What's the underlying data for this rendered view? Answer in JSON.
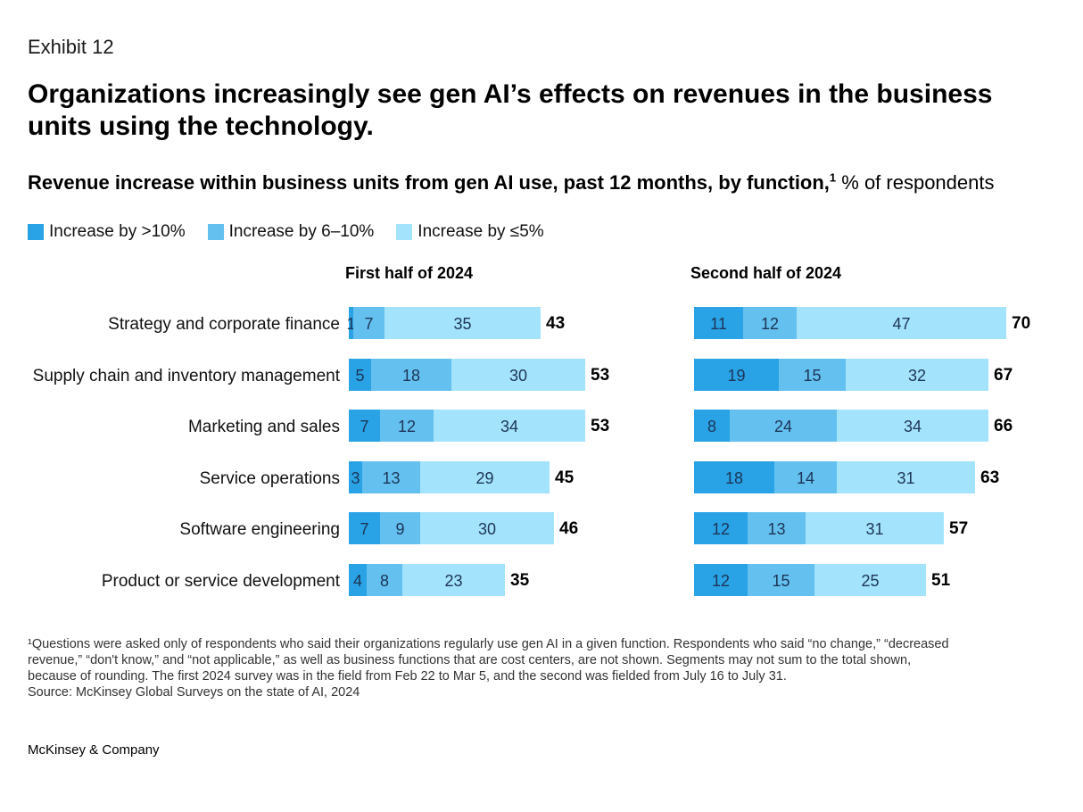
{
  "exhibit": "Exhibit 12",
  "title": "Organizations increasingly see gen AI’s effects on revenues in the business units using the technology.",
  "subtitle": {
    "bold": "Revenue increase within business units from gen AI use, past 12 months, by function,",
    "sup": "1",
    "normal": " % of respondents"
  },
  "legend": [
    {
      "label": "Increase by >10%",
      "color": "#29a3e6"
    },
    {
      "label": "Increase by 6–10%",
      "color": "#63c0ef"
    },
    {
      "label": "Increase by ≤5%",
      "color": "#a3e3fb"
    }
  ],
  "chart_data": {
    "type": "bar",
    "orientation": "horizontal-stacked",
    "categories": [
      "Strategy and corporate finance",
      "Supply chain and inventory management",
      "Marketing and sales",
      "Service operations",
      "Software engineering",
      "Product or service development"
    ],
    "panels": [
      {
        "title": "First half of 2024",
        "series": [
          {
            "name": "Increase by >10%",
            "values": [
              1,
              5,
              7,
              3,
              7,
              4
            ]
          },
          {
            "name": "Increase by 6–10%",
            "values": [
              7,
              18,
              12,
              13,
              9,
              8
            ]
          },
          {
            "name": "Increase by ≤5%",
            "values": [
              35,
              30,
              34,
              29,
              30,
              23
            ]
          }
        ],
        "totals": [
          43,
          53,
          53,
          45,
          46,
          35
        ]
      },
      {
        "title": "Second half of 2024",
        "series": [
          {
            "name": "Increase by >10%",
            "values": [
              11,
              19,
              8,
              18,
              12,
              12
            ]
          },
          {
            "name": "Increase by 6–10%",
            "values": [
              12,
              15,
              24,
              14,
              13,
              15
            ]
          },
          {
            "name": "Increase by ≤5%",
            "values": [
              47,
              32,
              34,
              31,
              31,
              25
            ]
          }
        ],
        "totals": [
          70,
          67,
          66,
          63,
          57,
          51
        ]
      }
    ]
  },
  "footnote": "¹Questions were asked only of respondents who said their organizations regularly use gen AI in a given function. Respondents who said “no change,” “decreased\n revenue,” “don't know,” and “not applicable,” as well as business functions that are cost centers, are not shown. Segments may not sum to the total shown,\n because of rounding. The first 2024 survey was in the field from Feb 22 to Mar 5, and the second was fielded from July 16 to July 31.",
  "source": " Source: McKinsey Global Surveys on the state of AI, 2024",
  "brand": "McKinsey & Company"
}
